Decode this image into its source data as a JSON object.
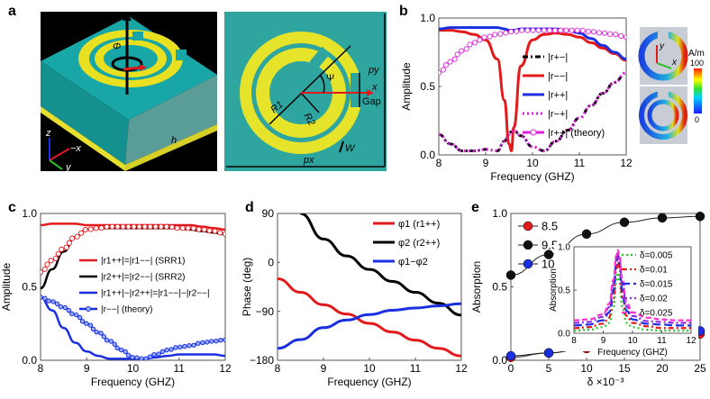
{
  "figure": {
    "panel_labels": [
      "a",
      "b",
      "c",
      "d",
      "e"
    ]
  },
  "panel_a": {
    "left_view": {
      "labels": {
        "phi": "Φ",
        "h": "h",
        "z": "z",
        "minus_x": "−x",
        "y": "y"
      },
      "colors": {
        "background": "#000000",
        "substrate": "#1aa3a3",
        "metal": "#e8e020",
        "arrow_red": "#e31a1c",
        "axis_blue": "#1a2fe0",
        "axis_green": "#22c022"
      }
    },
    "right_view": {
      "labels": {
        "r1": "R1",
        "r2": "R2",
        "psi": "Ψ",
        "x": "x",
        "gap": "Gap",
        "w": "W",
        "px": "px",
        "py": "py"
      },
      "colors": {
        "background": "#2fa5a0",
        "metal": "#e6e42a"
      }
    }
  },
  "chart_data": [
    {
      "id": "b",
      "type": "line",
      "title": "",
      "xlabel": "Frequency (GHZ)",
      "ylabel": "Amplitude",
      "xlim": [
        8,
        12
      ],
      "ylim": [
        0,
        1
      ],
      "xticks": [
        "8",
        "9",
        "10",
        "11",
        "12"
      ],
      "yticks": [
        "0.0",
        "0.5",
        "1.0"
      ],
      "grid": false,
      "legend_position": "center-right",
      "x": [
        8.0,
        8.25,
        8.5,
        8.75,
        9.0,
        9.25,
        9.4,
        9.5,
        9.55,
        9.6,
        9.75,
        10.0,
        10.25,
        10.5,
        10.75,
        11.0,
        11.25,
        11.5,
        11.75,
        12.0
      ],
      "series": [
        {
          "name": "|r+−|",
          "color": "#000000",
          "style": "dashdot",
          "values": [
            0.15,
            0.08,
            0.03,
            0.03,
            0.04,
            0.03,
            0.1,
            0.15,
            0.17,
            0.18,
            0.14,
            0.06,
            0.03,
            0.1,
            0.18,
            0.27,
            0.36,
            0.45,
            0.53,
            0.6
          ]
        },
        {
          "name": "|r−−|",
          "color": "#e31a1c",
          "style": "solid",
          "values": [
            0.91,
            0.91,
            0.9,
            0.88,
            0.84,
            0.7,
            0.4,
            0.08,
            0.03,
            0.2,
            0.65,
            0.84,
            0.88,
            0.89,
            0.88,
            0.86,
            0.82,
            0.78,
            0.74,
            0.69
          ]
        },
        {
          "name": "|r++|",
          "color": "#1a2fe0",
          "style": "solid",
          "values": [
            0.92,
            0.93,
            0.93,
            0.93,
            0.93,
            0.93,
            0.92,
            0.91,
            0.91,
            0.91,
            0.92,
            0.92,
            0.92,
            0.92,
            0.91,
            0.89,
            0.85,
            0.8,
            0.75,
            0.7
          ]
        },
        {
          "name": "|r−+|",
          "color": "#e020e0",
          "style": "dotted",
          "values": [
            0.15,
            0.08,
            0.03,
            0.03,
            0.04,
            0.03,
            0.1,
            0.15,
            0.17,
            0.18,
            0.14,
            0.06,
            0.03,
            0.1,
            0.18,
            0.27,
            0.36,
            0.45,
            0.53,
            0.6
          ]
        },
        {
          "name": "|r++| (theory)",
          "color": "#e020e0",
          "style": "open-circle",
          "values": [
            0.6,
            0.68,
            0.76,
            0.82,
            0.86,
            0.88,
            0.89,
            0.9,
            0.9,
            0.9,
            0.91,
            0.91,
            0.91,
            0.91,
            0.91,
            0.91,
            0.9,
            0.89,
            0.88,
            0.86
          ]
        }
      ],
      "inset": {
        "type": "field-map",
        "colorbar_unit": "A/m",
        "colorbar_max": "100",
        "colorbar_min": "0",
        "axis_labels": {
          "x": "x",
          "y": "y"
        }
      }
    },
    {
      "id": "c",
      "type": "line",
      "title": "",
      "xlabel": "Frequency (GHZ)",
      "ylabel": "Amplitude",
      "xlim": [
        8,
        12
      ],
      "ylim": [
        0,
        1
      ],
      "xticks": [
        "8",
        "9",
        "10",
        "11",
        "12"
      ],
      "yticks": [
        "0.0",
        "0.5",
        "1.0"
      ],
      "grid": false,
      "legend_position": "center",
      "x": [
        8.0,
        8.25,
        8.5,
        8.75,
        9.0,
        9.25,
        9.5,
        9.75,
        10.0,
        10.25,
        10.5,
        10.75,
        11.0,
        11.25,
        11.5,
        11.75,
        12.0
      ],
      "series": [
        {
          "name": "|r1++|=|r1−−| (SRR1)",
          "color": "#e31a1c",
          "style": "solid",
          "values": [
            0.92,
            0.93,
            0.93,
            0.93,
            0.92,
            0.92,
            0.92,
            0.92,
            0.92,
            0.92,
            0.92,
            0.92,
            0.92,
            0.92,
            0.91,
            0.9,
            0.89
          ]
        },
        {
          "name": "|r2++|=|r2−−| (SRR2)",
          "color": "#000000",
          "style": "solid",
          "values": [
            0.49,
            0.62,
            0.74,
            0.84,
            0.89,
            0.9,
            0.9,
            0.9,
            0.9,
            0.9,
            0.9,
            0.9,
            0.9,
            0.89,
            0.88,
            0.87,
            0.86
          ]
        },
        {
          "name": "|r1++|−|r2++|=|r1−−|−|r2−−|",
          "color": "#1a2fe0",
          "style": "solid",
          "values": [
            0.43,
            0.34,
            0.22,
            0.12,
            0.06,
            0.03,
            0.01,
            0.01,
            0.01,
            0.01,
            0.02,
            0.03,
            0.04,
            0.04,
            0.04,
            0.04,
            0.03
          ]
        },
        {
          "name": "|r−−| (theory)",
          "color": "#1a2fe0",
          "style": "circle-line",
          "values": [
            0.43,
            0.4,
            0.36,
            0.31,
            0.25,
            0.19,
            0.13,
            0.07,
            0.02,
            0.01,
            0.04,
            0.07,
            0.09,
            0.1,
            0.12,
            0.13,
            0.14
          ]
        },
        {
          "name": "SRR2 theory",
          "color": "#e31a1c",
          "style": "open-circle",
          "legend": false,
          "values": [
            0.6,
            0.68,
            0.76,
            0.84,
            0.89,
            0.9,
            0.91,
            0.91,
            0.91,
            0.91,
            0.91,
            0.91,
            0.9,
            0.9,
            0.89,
            0.88,
            0.86
          ]
        }
      ]
    },
    {
      "id": "d",
      "type": "line",
      "title": "",
      "xlabel": "Frequency (GHZ)",
      "ylabel": "Phase (deg)",
      "xlim": [
        8,
        12
      ],
      "ylim": [
        -180,
        90
      ],
      "xticks": [
        "8",
        "9",
        "10",
        "11",
        "12"
      ],
      "yticks": [
        "−180",
        "−90",
        "0",
        "90"
      ],
      "grid": false,
      "legend_position": "top-right",
      "x": [
        8.0,
        8.5,
        9.0,
        9.5,
        10.0,
        10.5,
        11.0,
        11.5,
        12.0
      ],
      "series": [
        {
          "name": "φ1 (r1++)",
          "color": "#e31a1c",
          "style": "solid",
          "values": [
            -30,
            -55,
            -78,
            -95,
            -112,
            -128,
            -143,
            -158,
            -172
          ]
        },
        {
          "name": "φ2 (r2++)",
          "color": "#000000",
          "style": "solid",
          "values": [
            null,
            90,
            43,
            12,
            -13,
            -35,
            -55,
            -75,
            -97
          ]
        },
        {
          "name": "φ1−φ2",
          "color": "#1a2fe0",
          "style": "solid",
          "values": [
            -158,
            -142,
            -120,
            -106,
            -96,
            -88,
            -84,
            -80,
            -76
          ]
        }
      ]
    },
    {
      "id": "e",
      "type": "line",
      "title": "",
      "xlabel": "δ ×10⁻³",
      "ylabel": "Absorption",
      "xlim": [
        0,
        25
      ],
      "ylim": [
        0,
        1
      ],
      "xticks": [
        "0",
        "5",
        "10",
        "15",
        "20",
        "25"
      ],
      "yticks": [
        "0.0",
        "0.5",
        "1.0"
      ],
      "grid": false,
      "legend_position": "top-left",
      "x": [
        0,
        5,
        10,
        15,
        20,
        25
      ],
      "series": [
        {
          "name": "8.5",
          "color": "#e31a1c",
          "style": "marker-line",
          "values": [
            0.02,
            0.05,
            0.08,
            0.11,
            0.15,
            0.18
          ]
        },
        {
          "name": "9.5",
          "color": "#111111",
          "style": "marker-line",
          "values": [
            0.58,
            0.72,
            0.86,
            0.94,
            0.97,
            0.98
          ]
        },
        {
          "name": "10.5",
          "color": "#1a2fe0",
          "style": "marker-line",
          "values": [
            0.03,
            0.05,
            0.09,
            0.13,
            0.17,
            0.2
          ]
        }
      ],
      "inset": {
        "type": "line",
        "xlabel": "Frequency (GHZ)",
        "ylabel": "Absorption",
        "xlim": [
          8,
          12
        ],
        "ylim": [
          0,
          1
        ],
        "xticks": [
          "8",
          "9",
          "10",
          "11",
          "12"
        ],
        "yticks": [
          "0.0",
          "0.5",
          "1.0"
        ],
        "legend_position": "top-right",
        "x": [
          8.0,
          8.5,
          9.0,
          9.2,
          9.35,
          9.45,
          9.5,
          9.55,
          9.65,
          9.8,
          10.0,
          10.5,
          11.0,
          11.5,
          12.0
        ],
        "series": [
          {
            "name": "δ=0.005",
            "color": "#22cc22",
            "style": "dotted",
            "values": [
              0.03,
              0.04,
              0.07,
              0.12,
              0.3,
              0.6,
              0.7,
              0.6,
              0.3,
              0.12,
              0.07,
              0.04,
              0.03,
              0.03,
              0.03
            ]
          },
          {
            "name": "δ=0.01",
            "color": "#e31a1c",
            "style": "dashdot",
            "values": [
              0.06,
              0.07,
              0.11,
              0.18,
              0.4,
              0.75,
              0.85,
              0.75,
              0.42,
              0.2,
              0.12,
              0.08,
              0.06,
              0.06,
              0.06
            ]
          },
          {
            "name": "δ=0.015",
            "color": "#1a2fe0",
            "style": "longdash",
            "values": [
              0.09,
              0.1,
              0.15,
              0.24,
              0.5,
              0.82,
              0.9,
              0.82,
              0.5,
              0.26,
              0.16,
              0.11,
              0.1,
              0.09,
              0.09
            ]
          },
          {
            "name": "δ=0.02",
            "color": "#8a2be2",
            "style": "dashdot",
            "values": [
              0.12,
              0.13,
              0.19,
              0.3,
              0.57,
              0.86,
              0.93,
              0.86,
              0.57,
              0.31,
              0.2,
              0.14,
              0.13,
              0.12,
              0.12
            ]
          },
          {
            "name": "δ=0.025",
            "color": "#ff33cc",
            "style": "dashed",
            "values": [
              0.15,
              0.16,
              0.22,
              0.34,
              0.62,
              0.9,
              0.96,
              0.9,
              0.62,
              0.35,
              0.24,
              0.18,
              0.16,
              0.15,
              0.15
            ]
          }
        ]
      }
    }
  ]
}
